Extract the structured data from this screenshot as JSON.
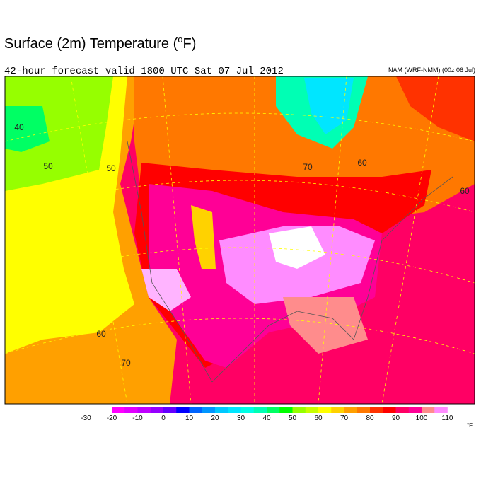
{
  "header": {
    "title": "Surface (2m) Temperature (",
    "title_sup": "o",
    "title_end": "F)",
    "subtitle": "42-hour forecast valid 1800 UTC Sat 07 Jul 2012",
    "model": "NAM (WRF-NMM) (00z 06 Jul)"
  },
  "contour_labels": [
    "40",
    "50",
    "50",
    "60",
    "70",
    "70",
    "60",
    "60"
  ],
  "colorbar": {
    "ticks": [
      -30,
      -20,
      -10,
      0,
      10,
      20,
      30,
      40,
      50,
      60,
      70,
      80,
      90,
      100,
      110
    ],
    "unit": "°F",
    "colors": [
      "#ff00ff",
      "#e100ff",
      "#c000ff",
      "#9600ff",
      "#6400ff",
      "#0000ff",
      "#0064ff",
      "#0096ff",
      "#00c8ff",
      "#00e6ff",
      "#00ffe6",
      "#00ffb4",
      "#00ff64",
      "#00ff00",
      "#96ff00",
      "#c8ff00",
      "#ffff00",
      "#ffd200",
      "#ffa000",
      "#ff7800",
      "#ff3200",
      "#ff0000",
      "#ff0064",
      "#ff0096",
      "#ff8c8c",
      "#ff8cff"
    ]
  }
}
